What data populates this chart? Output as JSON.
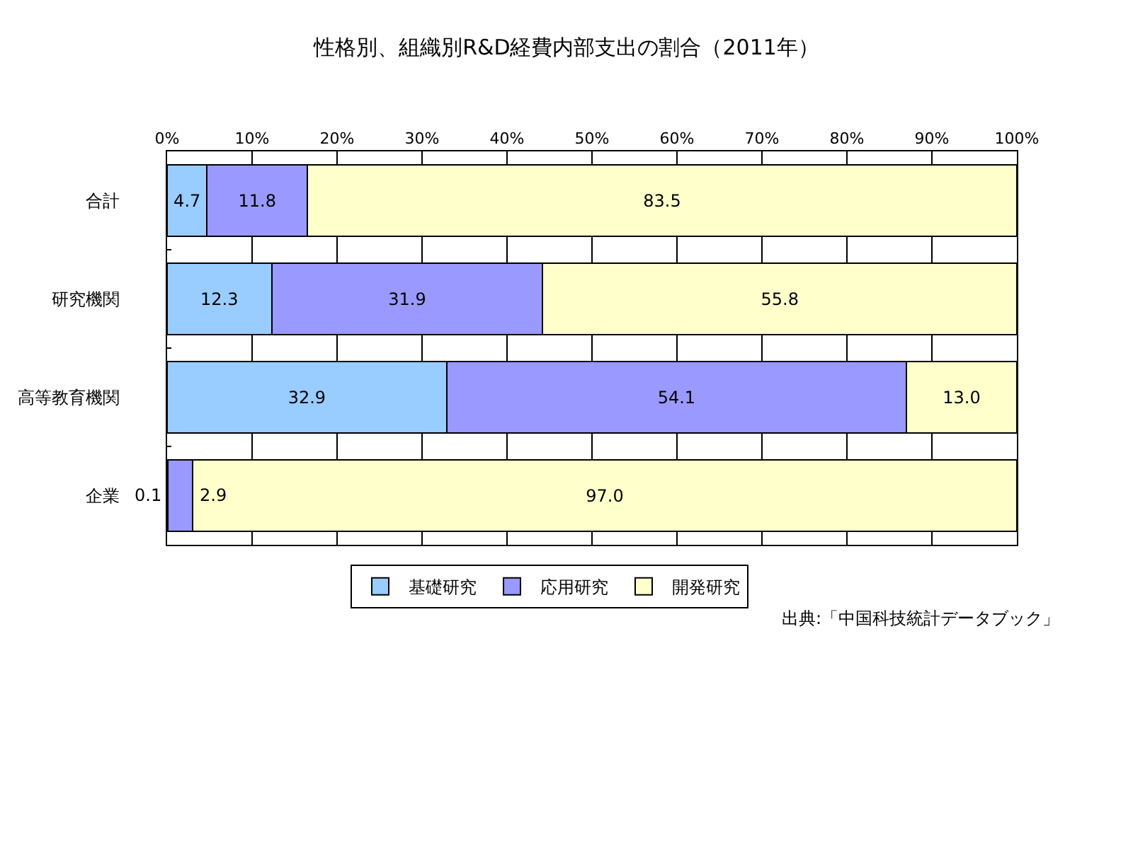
{
  "chart_data": {
    "type": "bar",
    "orientation": "horizontal",
    "stacked": true,
    "title": "性格別、組織別R&D経費内部支出の割合（2011年）",
    "categories": [
      "合計",
      "研究機関",
      "高等教育機関",
      "企業"
    ],
    "series": [
      {
        "name": "基礎研究",
        "color": "#99ccff",
        "values": [
          4.7,
          12.3,
          32.9,
          0.1
        ],
        "value_labels": [
          "4.7",
          "12.3",
          "32.9",
          "0.1"
        ]
      },
      {
        "name": "応用研究",
        "color": "#9999ff",
        "values": [
          11.8,
          31.9,
          54.1,
          2.9
        ],
        "value_labels": [
          "11.8",
          "31.9",
          "54.1",
          "2.9"
        ]
      },
      {
        "name": "開発研究",
        "color": "#ffffcc",
        "values": [
          83.5,
          55.8,
          13.0,
          97.0
        ],
        "value_labels": [
          "83.5",
          "55.8",
          "13.0",
          "97.0"
        ]
      }
    ],
    "xlim": [
      0,
      100
    ],
    "xticks": [
      {
        "value": 0,
        "label": "0%"
      },
      {
        "value": 10,
        "label": "10%"
      },
      {
        "value": 20,
        "label": "20%"
      },
      {
        "value": 30,
        "label": "30%"
      },
      {
        "value": 40,
        "label": "40%"
      },
      {
        "value": 50,
        "label": "50%"
      },
      {
        "value": 60,
        "label": "60%"
      },
      {
        "value": 70,
        "label": "70%"
      },
      {
        "value": 80,
        "label": "80%"
      },
      {
        "value": 90,
        "label": "90%"
      },
      {
        "value": 100,
        "label": "100%"
      }
    ],
    "grid": "x",
    "legend": "bottom",
    "annotations": [
      "出典:「中国科技統計データブック」"
    ]
  }
}
